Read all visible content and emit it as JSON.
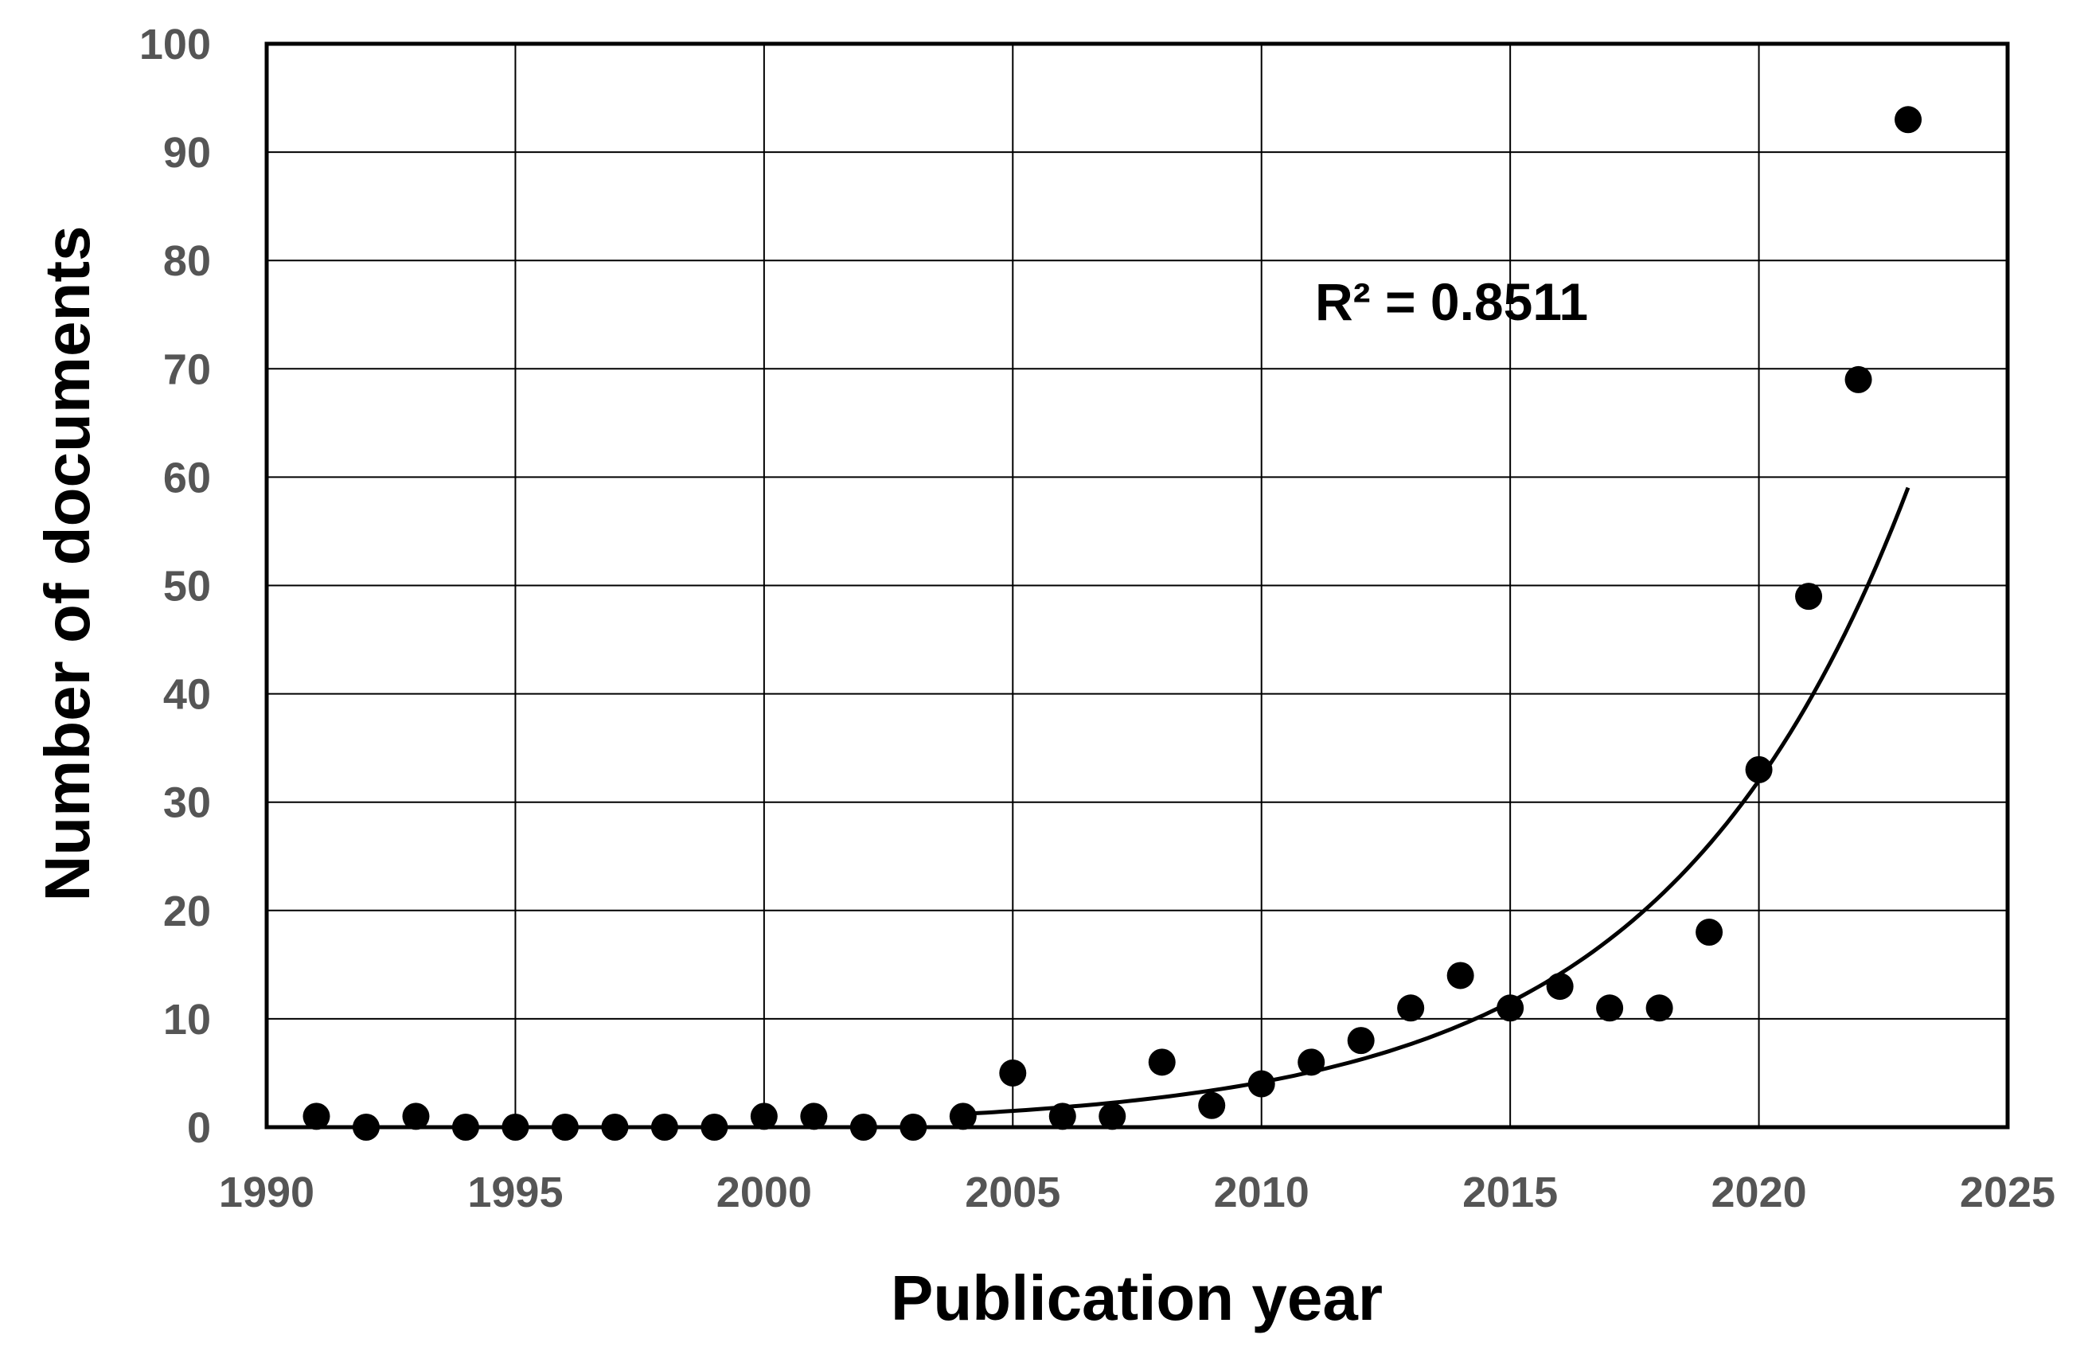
{
  "chart_data": {
    "type": "scatter",
    "title": "",
    "xlabel": "Publication year",
    "ylabel": "Number of documents",
    "xlim": [
      1990,
      2025
    ],
    "ylim": [
      0,
      100
    ],
    "x_ticks": [
      1990,
      1995,
      2000,
      2005,
      2010,
      2015,
      2020,
      2025
    ],
    "y_ticks": [
      0,
      10,
      20,
      30,
      40,
      50,
      60,
      70,
      80,
      90,
      100
    ],
    "grid": true,
    "legend": "none",
    "series": [
      {
        "x": [
          1991,
          1992,
          1993,
          1994,
          1995,
          1996,
          1997,
          1998,
          1999,
          2000,
          2001,
          2002,
          2003,
          2004,
          2005,
          2006,
          2007,
          2008,
          2009,
          2010,
          2011,
          2012,
          2013,
          2014,
          2015,
          2016,
          2017,
          2018,
          2019,
          2020,
          2021,
          2022,
          2023
        ],
        "y": [
          1,
          0,
          1,
          0,
          0,
          0,
          0,
          0,
          0,
          1,
          1,
          0,
          0,
          1,
          5,
          1,
          1,
          6,
          2,
          4,
          6,
          8,
          11,
          14,
          11,
          13,
          11,
          11,
          18,
          33,
          49,
          69,
          93
        ]
      }
    ],
    "trendline": {
      "type": "exponential",
      "x_range": [
        2004,
        2023
      ],
      "points": [
        {
          "x": 2004,
          "y": 1.3
        },
        {
          "x": 2010,
          "y": 4.0
        },
        {
          "x": 2015,
          "y": 10.5
        },
        {
          "x": 2020,
          "y": 33.0
        },
        {
          "x": 2023,
          "y": 61.5
        }
      ]
    },
    "annotations": [
      {
        "text": "R² = 0.8511"
      }
    ],
    "colors": {
      "points": "#000000",
      "trendline": "#000000",
      "grid": "#000000",
      "frame": "#000000",
      "tick_labels": "#555555"
    }
  }
}
